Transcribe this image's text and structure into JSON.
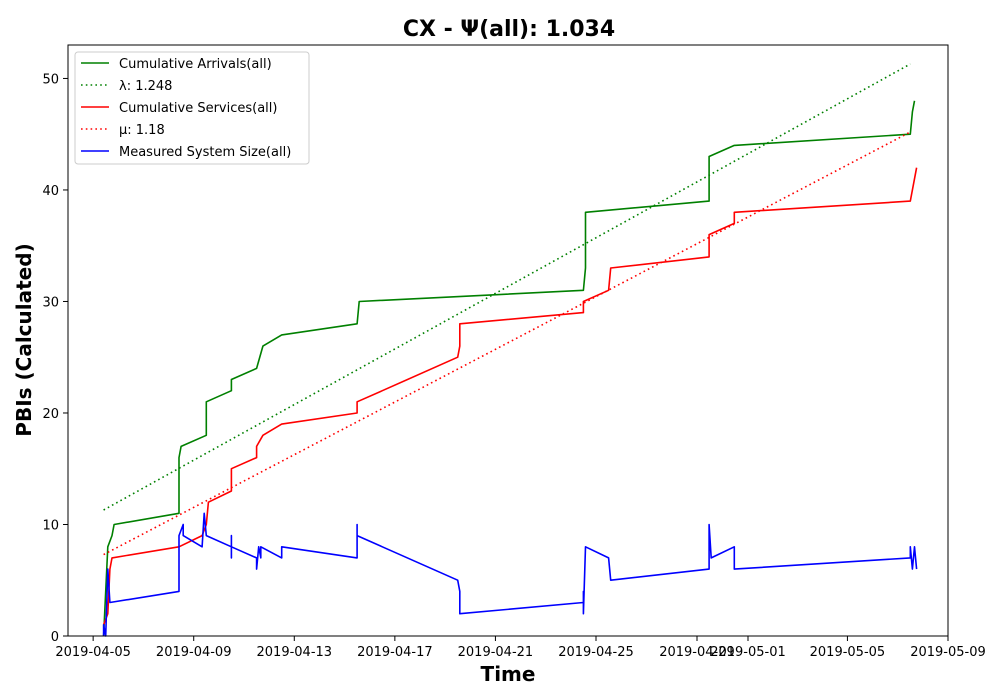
{
  "chart_data": {
    "type": "line",
    "title": "CX -  Ψ(all): 1.034",
    "xlabel": "Time",
    "ylabel": "PBIs (Calculated)",
    "xlim": [
      "2019-04-04T00:00",
      "2019-05-09T00:00"
    ],
    "ylim": [
      0,
      53
    ],
    "x_ticks": [
      "2019-04-05",
      "2019-04-09",
      "2019-04-13",
      "2019-04-17",
      "2019-04-21",
      "2019-04-25",
      "2019-04-29",
      "2019-05-01",
      "2019-05-05",
      "2019-05-09"
    ],
    "y_ticks": [
      0,
      10,
      20,
      30,
      40,
      50
    ],
    "legend_position": "top-left",
    "grid": false,
    "series": [
      {
        "name": "Cumulative Arrivals(all)",
        "color": "#008000",
        "style": "solid",
        "points": [
          [
            "2019-04-05T10:00",
            0
          ],
          [
            "2019-04-05T12:00",
            4
          ],
          [
            "2019-04-05T14:00",
            8
          ],
          [
            "2019-04-05T18:00",
            9
          ],
          [
            "2019-04-05T20:00",
            10
          ],
          [
            "2019-04-08T10:00",
            11
          ],
          [
            "2019-04-08T10:00",
            16
          ],
          [
            "2019-04-08T12:00",
            17
          ],
          [
            "2019-04-09T12:00",
            18
          ],
          [
            "2019-04-09T12:00",
            21
          ],
          [
            "2019-04-10T12:00",
            22
          ],
          [
            "2019-04-10T12:00",
            23
          ],
          [
            "2019-04-11T12:00",
            24
          ],
          [
            "2019-04-11T18:00",
            26
          ],
          [
            "2019-04-12T12:00",
            27
          ],
          [
            "2019-04-15T12:00",
            28
          ],
          [
            "2019-04-15T14:00",
            30
          ],
          [
            "2019-04-24T12:00",
            31
          ],
          [
            "2019-04-24T14:00",
            33
          ],
          [
            "2019-04-24T14:00",
            38
          ],
          [
            "2019-04-29T12:00",
            39
          ],
          [
            "2019-04-29T12:00",
            43
          ],
          [
            "2019-04-30T12:00",
            44
          ],
          [
            "2019-05-07T12:00",
            45
          ],
          [
            "2019-05-07T14:00",
            47
          ],
          [
            "2019-05-07T16:00",
            48
          ]
        ]
      },
      {
        "name": "λ: 1.248",
        "color": "#008000",
        "style": "dotted",
        "points": [
          [
            "2019-04-05T10:00",
            11.3
          ],
          [
            "2019-05-07T12:00",
            51.3
          ]
        ]
      },
      {
        "name": "Cumulative Services(all)",
        "color": "#ff0000",
        "style": "solid",
        "points": [
          [
            "2019-04-05T10:00",
            1
          ],
          [
            "2019-04-05T14:00",
            2
          ],
          [
            "2019-04-05T16:00",
            6
          ],
          [
            "2019-04-05T18:00",
            7
          ],
          [
            "2019-04-08T10:00",
            8
          ],
          [
            "2019-04-09T08:00",
            9
          ],
          [
            "2019-04-09T12:00",
            10
          ],
          [
            "2019-04-09T14:00",
            12
          ],
          [
            "2019-04-10T12:00",
            13
          ],
          [
            "2019-04-10T12:00",
            15
          ],
          [
            "2019-04-11T12:00",
            16
          ],
          [
            "2019-04-11T12:00",
            17
          ],
          [
            "2019-04-11T18:00",
            18
          ],
          [
            "2019-04-12T12:00",
            19
          ],
          [
            "2019-04-15T12:00",
            20
          ],
          [
            "2019-04-15T12:00",
            21
          ],
          [
            "2019-04-16T12:00",
            22
          ],
          [
            "2019-04-19T12:00",
            25
          ],
          [
            "2019-04-19T14:00",
            26
          ],
          [
            "2019-04-19T14:00",
            28
          ],
          [
            "2019-04-24T12:00",
            29
          ],
          [
            "2019-04-24T12:00",
            30
          ],
          [
            "2019-04-25T12:00",
            31
          ],
          [
            "2019-04-25T14:00",
            33
          ],
          [
            "2019-04-29T12:00",
            34
          ],
          [
            "2019-04-29T12:00",
            36
          ],
          [
            "2019-04-30T12:00",
            37
          ],
          [
            "2019-04-30T12:00",
            38
          ],
          [
            "2019-05-07T12:00",
            39
          ],
          [
            "2019-05-07T16:00",
            41
          ],
          [
            "2019-05-07T18:00",
            42
          ]
        ]
      },
      {
        "name": "μ: 1.18",
        "color": "#ff0000",
        "style": "dotted",
        "points": [
          [
            "2019-04-05T10:00",
            7.3
          ],
          [
            "2019-05-07T12:00",
            45.2
          ]
        ]
      },
      {
        "name": "Measured System Size(all)",
        "color": "#0000ff",
        "style": "solid",
        "points": [
          [
            "2019-04-05T10:00",
            0
          ],
          [
            "2019-04-05T10:00",
            1
          ],
          [
            "2019-04-05T12:00",
            0
          ],
          [
            "2019-04-05T14:00",
            6
          ],
          [
            "2019-04-05T16:00",
            3
          ],
          [
            "2019-04-08T10:00",
            4
          ],
          [
            "2019-04-08T10:00",
            9
          ],
          [
            "2019-04-08T14:00",
            10
          ],
          [
            "2019-04-08T14:00",
            9
          ],
          [
            "2019-04-09T08:00",
            8
          ],
          [
            "2019-04-09T10:00",
            11
          ],
          [
            "2019-04-09T12:00",
            9
          ],
          [
            "2019-04-10T12:00",
            8
          ],
          [
            "2019-04-10T12:00",
            7
          ],
          [
            "2019-04-10T12:00",
            9
          ],
          [
            "2019-04-10T12:00",
            8
          ],
          [
            "2019-04-11T12:00",
            7
          ],
          [
            "2019-04-11T12:00",
            6
          ],
          [
            "2019-04-11T14:00",
            8
          ],
          [
            "2019-04-11T16:00",
            7
          ],
          [
            "2019-04-11T16:00",
            8
          ],
          [
            "2019-04-12T12:00",
            7
          ],
          [
            "2019-04-12T12:00",
            8
          ],
          [
            "2019-04-15T12:00",
            7
          ],
          [
            "2019-04-15T12:00",
            10
          ],
          [
            "2019-04-15T12:00",
            9
          ],
          [
            "2019-04-16T12:00",
            8
          ],
          [
            "2019-04-19T12:00",
            5
          ],
          [
            "2019-04-19T14:00",
            4
          ],
          [
            "2019-04-19T14:00",
            2
          ],
          [
            "2019-04-24T12:00",
            3
          ],
          [
            "2019-04-24T12:00",
            4
          ],
          [
            "2019-04-24T12:00",
            2
          ],
          [
            "2019-04-24T14:00",
            8
          ],
          [
            "2019-04-25T12:00",
            7
          ],
          [
            "2019-04-25T14:00",
            5
          ],
          [
            "2019-04-29T12:00",
            6
          ],
          [
            "2019-04-29T12:00",
            10
          ],
          [
            "2019-04-29T14:00",
            7
          ],
          [
            "2019-04-30T12:00",
            8
          ],
          [
            "2019-04-30T12:00",
            6
          ],
          [
            "2019-05-07T12:00",
            7
          ],
          [
            "2019-05-07T12:00",
            8
          ],
          [
            "2019-05-07T14:00",
            6
          ],
          [
            "2019-05-07T16:00",
            8
          ],
          [
            "2019-05-07T18:00",
            6
          ]
        ]
      }
    ]
  }
}
